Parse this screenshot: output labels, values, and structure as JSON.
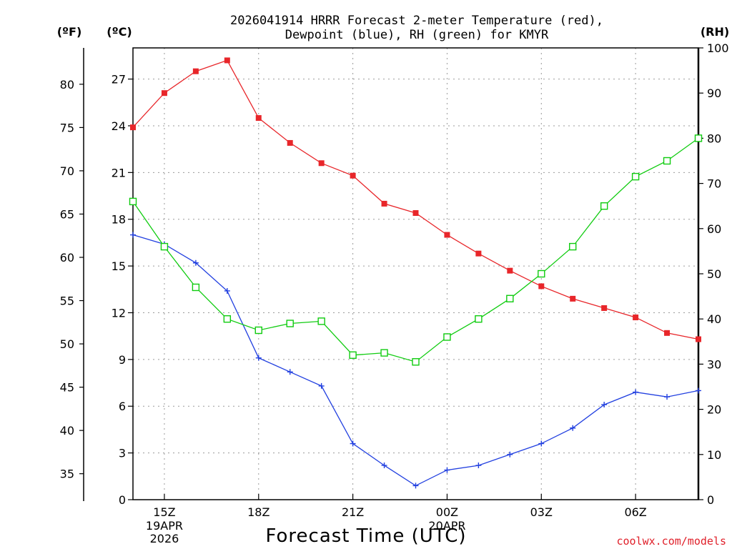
{
  "title_line1": "2026041914 HRRR Forecast 2-meter Temperature (red),",
  "title_line2": "Dewpoint (blue), RH (green) for KMYR",
  "unit_f": "(ºF)",
  "unit_c": "(ºC)",
  "unit_rh": "(RH)",
  "xlabel": "Forecast Time (UTC)",
  "credit": "coolwx.com/models",
  "colors": {
    "temp": "#e8262a",
    "dewpoint": "#2240e0",
    "rh": "#10cc10",
    "grid": "#9a9a9a"
  },
  "chart_data": {
    "type": "line",
    "hours": [
      14,
      15,
      16,
      17,
      18,
      19,
      20,
      21,
      22,
      23,
      24,
      25,
      26,
      27,
      28,
      29,
      30,
      31,
      32
    ],
    "x_ticks": [
      {
        "hour": 15,
        "label": "15Z",
        "sub": [
          "19APR",
          "2026"
        ]
      },
      {
        "hour": 18,
        "label": "18Z",
        "sub": []
      },
      {
        "hour": 21,
        "label": "21Z",
        "sub": []
      },
      {
        "hour": 24,
        "label": "00Z",
        "sub": [
          "20APR"
        ]
      },
      {
        "hour": 27,
        "label": "03Z",
        "sub": []
      },
      {
        "hour": 30,
        "label": "06Z",
        "sub": []
      }
    ],
    "xlim": [
      14,
      32
    ],
    "ylim_c": [
      0,
      29
    ],
    "ylim_rh": [
      0,
      100
    ],
    "c_ticks": [
      0,
      3,
      6,
      9,
      12,
      15,
      18,
      21,
      24,
      27
    ],
    "f_ticks": [
      35,
      40,
      45,
      50,
      55,
      60,
      65,
      70,
      75,
      80
    ],
    "rh_ticks": [
      0,
      10,
      20,
      30,
      40,
      50,
      60,
      70,
      80,
      90,
      100
    ],
    "series": [
      {
        "name": "Temperature",
        "unit": "C",
        "marker": "filled-square",
        "values": [
          23.9,
          26.1,
          27.5,
          28.2,
          24.5,
          22.9,
          21.6,
          20.8,
          19.0,
          18.4,
          17.0,
          15.8,
          14.7,
          13.7,
          12.9,
          12.3,
          11.7,
          10.7,
          10.3
        ]
      },
      {
        "name": "Dewpoint",
        "unit": "C",
        "marker": "plus",
        "values": [
          17.0,
          16.4,
          15.2,
          13.4,
          9.1,
          8.2,
          7.3,
          3.6,
          2.2,
          0.9,
          1.9,
          2.2,
          2.9,
          3.6,
          4.6,
          6.1,
          6.9,
          6.6,
          7.0
        ]
      },
      {
        "name": "RH",
        "unit": "%",
        "marker": "open-square",
        "values": [
          66,
          56,
          47,
          40,
          37.5,
          39,
          39.5,
          32,
          32.5,
          30.5,
          36,
          40,
          44.5,
          50,
          56,
          65,
          71.5,
          75,
          80
        ]
      }
    ]
  }
}
